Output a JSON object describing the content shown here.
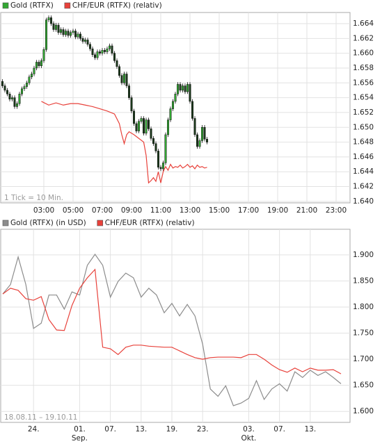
{
  "chart_data": [
    {
      "type": "candlestick",
      "annotation": "1 Tick = 10 Min.",
      "grid": true,
      "xlim": [
        0,
        1440
      ],
      "xticks": [
        {
          "value": 180,
          "label": "03:00"
        },
        {
          "value": 300,
          "label": "05:00"
        },
        {
          "value": 420,
          "label": "07:00"
        },
        {
          "value": 540,
          "label": "09:00"
        },
        {
          "value": 660,
          "label": "11:00"
        },
        {
          "value": 780,
          "label": "13:00"
        },
        {
          "value": 900,
          "label": "15:00"
        },
        {
          "value": 1020,
          "label": "17:00"
        },
        {
          "value": 1140,
          "label": "19:00"
        },
        {
          "value": 1260,
          "label": "21:00"
        },
        {
          "value": 1380,
          "label": "23:00"
        }
      ],
      "ylim": [
        1.6398,
        1.6655
      ],
      "yticks": [
        {
          "value": 1.64,
          "label": "1.640"
        },
        1.642,
        1.644,
        1.646,
        1.648,
        {
          "value": 1.65,
          "label": "1.650"
        },
        1.652,
        1.654,
        1.656,
        1.658,
        {
          "value": 1.66,
          "label": "1.660"
        },
        1.662,
        1.664
      ],
      "series": [
        {
          "name": "Gold (RTFX)",
          "color": "#33a833",
          "up_color": "#33a833",
          "down_color": "#1c3a1c",
          "x": [
            10,
            20,
            30,
            40,
            50,
            60,
            70,
            80,
            90,
            100,
            110,
            120,
            130,
            140,
            150,
            160,
            170,
            180,
            190,
            200,
            210,
            220,
            230,
            240,
            250,
            260,
            270,
            280,
            290,
            300,
            310,
            320,
            330,
            340,
            350,
            360,
            370,
            380,
            390,
            400,
            410,
            420,
            430,
            440,
            450,
            460,
            470,
            480,
            490,
            500,
            510,
            520,
            530,
            540,
            550,
            560,
            570,
            580,
            590,
            600,
            610,
            620,
            630,
            640,
            650,
            660,
            670,
            680,
            690,
            700,
            710,
            720,
            730,
            740,
            750,
            760,
            770,
            780,
            790,
            800,
            810,
            820,
            830,
            840,
            850
          ],
          "open": [
            1.6562,
            1.6556,
            1.655,
            1.6545,
            1.6538,
            1.654,
            1.6528,
            1.6532,
            1.6545,
            1.6552,
            1.6555,
            1.656,
            1.6568,
            1.6572,
            1.658,
            1.6588,
            1.6583,
            1.659,
            1.6605,
            1.6645,
            1.6648,
            1.664,
            1.6632,
            1.6638,
            1.6628,
            1.6632,
            1.6625,
            1.663,
            1.6624,
            1.6628,
            1.663,
            1.6622,
            1.6626,
            1.662,
            1.6616,
            1.6618,
            1.6612,
            1.6606,
            1.6598,
            1.6594,
            1.6602,
            1.66,
            1.6604,
            1.6602,
            1.6606,
            1.661,
            1.66,
            1.659,
            1.6582,
            1.657,
            1.656,
            1.6572,
            1.6556,
            1.654,
            1.6522,
            1.6505,
            1.6495,
            1.6508,
            1.6512,
            1.6492,
            1.651,
            1.6498,
            1.6485,
            1.6478,
            1.6468,
            1.6446,
            1.6444,
            1.6452,
            1.649,
            1.651,
            1.6525,
            1.6535,
            1.6545,
            1.6558,
            1.655,
            1.6556,
            1.6548,
            1.6558,
            1.6535,
            1.6512,
            1.649,
            1.6474,
            1.6482,
            1.65,
            1.6484
          ],
          "high": [
            1.6565,
            1.6559,
            1.6553,
            1.6548,
            1.6543,
            1.6543,
            1.6535,
            1.6548,
            1.6555,
            1.6558,
            1.6563,
            1.6571,
            1.6575,
            1.6583,
            1.6591,
            1.6591,
            1.6593,
            1.6608,
            1.6648,
            1.6651,
            1.6651,
            1.6643,
            1.6641,
            1.6641,
            1.6635,
            1.6635,
            1.6633,
            1.6633,
            1.6631,
            1.6633,
            1.6633,
            1.6629,
            1.6629,
            1.6623,
            1.6621,
            1.6621,
            1.6615,
            1.6609,
            1.6601,
            1.6605,
            1.6605,
            1.6607,
            1.6607,
            1.6609,
            1.6613,
            1.6613,
            1.6603,
            1.6593,
            1.6585,
            1.6573,
            1.6575,
            1.6575,
            1.6559,
            1.6543,
            1.6525,
            1.6508,
            1.6511,
            1.6515,
            1.6515,
            1.6513,
            1.6513,
            1.6501,
            1.6488,
            1.6481,
            1.6471,
            1.6449,
            1.6455,
            1.6493,
            1.6513,
            1.6528,
            1.6538,
            1.6548,
            1.6561,
            1.6561,
            1.6559,
            1.6559,
            1.6561,
            1.6561,
            1.6538,
            1.6515,
            1.6493,
            1.6485,
            1.6503,
            1.6503,
            1.6487
          ],
          "low": [
            1.6553,
            1.6547,
            1.6542,
            1.6535,
            1.6535,
            1.6525,
            1.6525,
            1.6529,
            1.6542,
            1.6549,
            1.6552,
            1.6557,
            1.6565,
            1.6569,
            1.6577,
            1.658,
            1.658,
            1.6587,
            1.6602,
            1.6642,
            1.6637,
            1.6629,
            1.6629,
            1.6625,
            1.6625,
            1.6622,
            1.6622,
            1.6621,
            1.6621,
            1.6625,
            1.6619,
            1.6619,
            1.6617,
            1.6613,
            1.6613,
            1.6609,
            1.6603,
            1.6595,
            1.6591,
            1.6591,
            1.6597,
            1.6597,
            1.6599,
            1.6599,
            1.6603,
            1.6597,
            1.6587,
            1.6579,
            1.6567,
            1.6557,
            1.6557,
            1.6553,
            1.6537,
            1.6519,
            1.6502,
            1.6492,
            1.6492,
            1.6505,
            1.6489,
            1.6489,
            1.6495,
            1.6482,
            1.6475,
            1.6465,
            1.6443,
            1.6441,
            1.6441,
            1.6449,
            1.6487,
            1.6507,
            1.6522,
            1.6532,
            1.6542,
            1.6547,
            1.6547,
            1.6545,
            1.6545,
            1.6532,
            1.6509,
            1.6487,
            1.6471,
            1.6471,
            1.6479,
            1.6481,
            1.6477
          ],
          "close": [
            1.6556,
            1.655,
            1.6545,
            1.6538,
            1.654,
            1.6528,
            1.6532,
            1.6545,
            1.6552,
            1.6555,
            1.656,
            1.6568,
            1.6572,
            1.658,
            1.6588,
            1.6583,
            1.659,
            1.6605,
            1.6645,
            1.6648,
            1.664,
            1.6632,
            1.6638,
            1.6628,
            1.6632,
            1.6625,
            1.663,
            1.6624,
            1.6628,
            1.663,
            1.6622,
            1.6626,
            1.662,
            1.6616,
            1.6618,
            1.6612,
            1.6606,
            1.6598,
            1.6594,
            1.6602,
            1.66,
            1.6604,
            1.6602,
            1.6606,
            1.661,
            1.66,
            1.659,
            1.6582,
            1.657,
            1.656,
            1.6572,
            1.6556,
            1.654,
            1.6522,
            1.6505,
            1.6495,
            1.6508,
            1.6512,
            1.6492,
            1.651,
            1.6498,
            1.6485,
            1.6478,
            1.6468,
            1.6446,
            1.6444,
            1.6452,
            1.649,
            1.651,
            1.6525,
            1.6535,
            1.6545,
            1.6558,
            1.655,
            1.6556,
            1.6548,
            1.6558,
            1.6535,
            1.6512,
            1.649,
            1.6474,
            1.6482,
            1.65,
            1.6484,
            1.648
          ]
        },
        {
          "name": "CHF/EUR (RTFX) (relativ)",
          "color": "#e8413a",
          "type": "line",
          "x": [
            170,
            200,
            230,
            260,
            290,
            320,
            350,
            380,
            410,
            440,
            470,
            490,
            500,
            510,
            520,
            530,
            550,
            570,
            590,
            600,
            610,
            620,
            630,
            640,
            650,
            660,
            670,
            680,
            690,
            700,
            710,
            720,
            730,
            740,
            750,
            760,
            770,
            780,
            790,
            800,
            810,
            820,
            830,
            840,
            850
          ],
          "values": [
            1.6535,
            1.653,
            1.6533,
            1.653,
            1.6532,
            1.6532,
            1.653,
            1.6528,
            1.6525,
            1.6522,
            1.6518,
            1.6505,
            1.649,
            1.6478,
            1.649,
            1.6494,
            1.649,
            1.6485,
            1.648,
            1.6462,
            1.6425,
            1.6428,
            1.6432,
            1.6427,
            1.644,
            1.6425,
            1.644,
            1.6447,
            1.6442,
            1.645,
            1.6445,
            1.6447,
            1.6446,
            1.6449,
            1.6445,
            1.6447,
            1.645,
            1.6446,
            1.6448,
            1.6444,
            1.6449,
            1.6446,
            1.6447,
            1.6445,
            1.6446
          ]
        }
      ]
    },
    {
      "type": "line",
      "annotation": "18.08.11 – 19.10.11",
      "grid": true,
      "categories": [
        null,
        null,
        null,
        null,
        "24.",
        null,
        null,
        null,
        null,
        null,
        "01.",
        null,
        null,
        null,
        "07.",
        null,
        null,
        null,
        "13.",
        null,
        null,
        null,
        "19.",
        null,
        null,
        null,
        "23.",
        null,
        null,
        null,
        null,
        null,
        "03.",
        null,
        null,
        null,
        "07.",
        null,
        null,
        null,
        "13.",
        null,
        null,
        null,
        null
      ],
      "month_labels": [
        null,
        null,
        null,
        null,
        null,
        null,
        null,
        null,
        null,
        null,
        "Sep.",
        null,
        null,
        null,
        null,
        null,
        null,
        null,
        null,
        null,
        null,
        null,
        null,
        null,
        null,
        null,
        null,
        null,
        null,
        null,
        null,
        null,
        "Okt.",
        null,
        null,
        null,
        null,
        null,
        null,
        null,
        null,
        null,
        null,
        null,
        null
      ],
      "ylim": [
        1.579,
        1.949
      ],
      "yticks": [
        {
          "value": 1.6,
          "label": "1.600"
        },
        {
          "value": 1.65,
          "label": "1.650"
        },
        {
          "value": 1.7,
          "label": "1.700"
        },
        {
          "value": 1.75,
          "label": "1.750"
        },
        {
          "value": 1.8,
          "label": "1.800"
        },
        {
          "value": 1.85,
          "label": "1.850"
        },
        {
          "value": 1.9,
          "label": "1.900"
        }
      ],
      "series": [
        {
          "name": "Gold (RTFX) (in USD)",
          "color": "#8c8c8c",
          "values": [
            1.825,
            1.843,
            1.896,
            1.843,
            1.759,
            1.769,
            1.823,
            1.823,
            1.796,
            1.829,
            1.823,
            1.88,
            1.901,
            1.88,
            1.819,
            1.849,
            1.865,
            1.856,
            1.819,
            1.836,
            1.823,
            1.789,
            1.807,
            1.783,
            1.805,
            1.783,
            1.729,
            1.643,
            1.629,
            1.649,
            1.611,
            1.616,
            1.625,
            1.659,
            1.623,
            1.643,
            1.653,
            1.639,
            1.676,
            1.665,
            1.679,
            1.669,
            1.676,
            1.665,
            1.653
          ]
        },
        {
          "name": "CHF/EUR (RTFX) (relativ)",
          "color": "#e8413a",
          "values": [
            1.825,
            1.836,
            1.832,
            1.816,
            1.813,
            1.82,
            1.776,
            1.756,
            1.755,
            1.803,
            1.836,
            1.856,
            1.872,
            1.723,
            1.72,
            1.709,
            1.723,
            1.727,
            1.727,
            1.725,
            1.724,
            1.723,
            1.723,
            1.716,
            1.709,
            1.703,
            1.7,
            1.703,
            1.704,
            1.704,
            1.704,
            1.703,
            1.709,
            1.709,
            1.7,
            1.689,
            1.68,
            1.675,
            1.683,
            1.676,
            1.683,
            1.679,
            1.679,
            1.68,
            1.672
          ]
        }
      ]
    }
  ]
}
